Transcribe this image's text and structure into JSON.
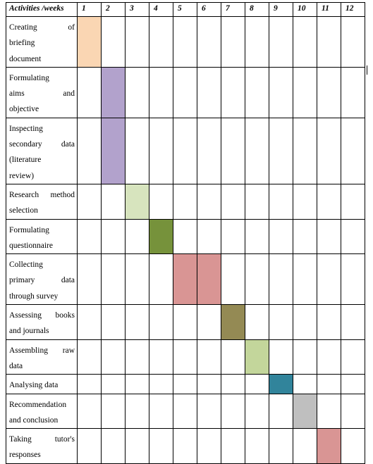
{
  "table": {
    "header": {
      "activity_label": "Activities /weeks",
      "weeks": [
        "1",
        "2",
        "3",
        "4",
        "5",
        "6",
        "7",
        "8",
        "9",
        "10",
        "11",
        "12"
      ]
    },
    "rows": [
      {
        "lines": [
          "Creating of",
          "briefing",
          "document"
        ],
        "weeks": [
          1
        ],
        "color": "#fad6b3"
      },
      {
        "lines": [
          "Formulating",
          "aims and",
          "objective"
        ],
        "weeks": [
          2
        ],
        "color": "#b2a2cc"
      },
      {
        "lines": [
          "Inspecting",
          "secondary data",
          "(literature",
          "review)"
        ],
        "weeks": [
          2
        ],
        "color": "#b2a2cc"
      },
      {
        "lines": [
          "Research method",
          "selection"
        ],
        "weeks": [
          3
        ],
        "color": "#d7e4be"
      },
      {
        "lines": [
          "Formulating",
          "questionnaire"
        ],
        "weeks": [
          4
        ],
        "color": "#76923b"
      },
      {
        "lines": [
          "Collecting",
          "primary data",
          "through survey"
        ],
        "weeks": [
          5,
          6
        ],
        "color": "#d99594"
      },
      {
        "lines": [
          "Assessing books",
          "and journals"
        ],
        "weeks": [
          7
        ],
        "color": "#948a54"
      },
      {
        "lines": [
          "Assembling raw",
          "data"
        ],
        "weeks": [
          8
        ],
        "color": "#c3d69b"
      },
      {
        "lines": [
          "Analysing data"
        ],
        "weeks": [
          9
        ],
        "color": "#31849b"
      },
      {
        "lines": [
          "Recommendation",
          "and conclusion"
        ],
        "weeks": [
          10
        ],
        "color": "#bfbfbf"
      },
      {
        "lines": [
          "Taking tutor's",
          "responses"
        ],
        "weeks": [
          11
        ],
        "color": "#d99594"
      }
    ]
  }
}
